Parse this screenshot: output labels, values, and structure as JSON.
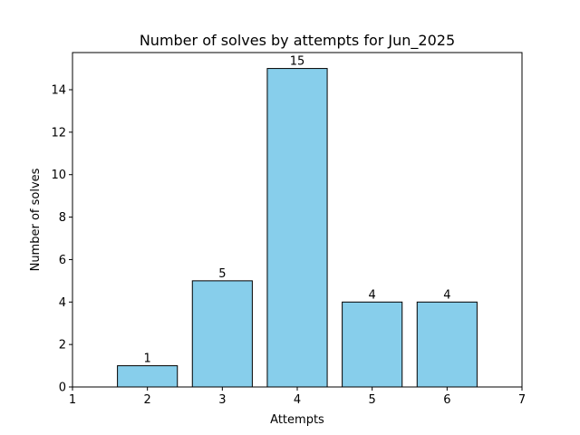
{
  "chart_data": {
    "type": "bar",
    "title": "Number of solves by attempts for Jun_2025",
    "xlabel": "Attempts",
    "ylabel": "Number of solves",
    "x": [
      2,
      3,
      4,
      5,
      6
    ],
    "values": [
      1,
      5,
      15,
      4,
      4
    ],
    "data_labels": [
      "1",
      "5",
      "15",
      "4",
      "4"
    ],
    "xlim": [
      1,
      7
    ],
    "ylim": [
      0,
      15.75
    ],
    "xticks": [
      1,
      2,
      3,
      4,
      5,
      6,
      7
    ],
    "xtick_labels": [
      "1",
      "2",
      "3",
      "4",
      "5",
      "6",
      "7"
    ],
    "yticks": [
      0,
      2,
      4,
      6,
      8,
      10,
      12,
      14
    ],
    "ytick_labels": [
      "0",
      "2",
      "4",
      "6",
      "8",
      "10",
      "12",
      "14"
    ],
    "grid": false,
    "bar_color": "#87CEEB",
    "bar_edge_color": "#000000"
  }
}
